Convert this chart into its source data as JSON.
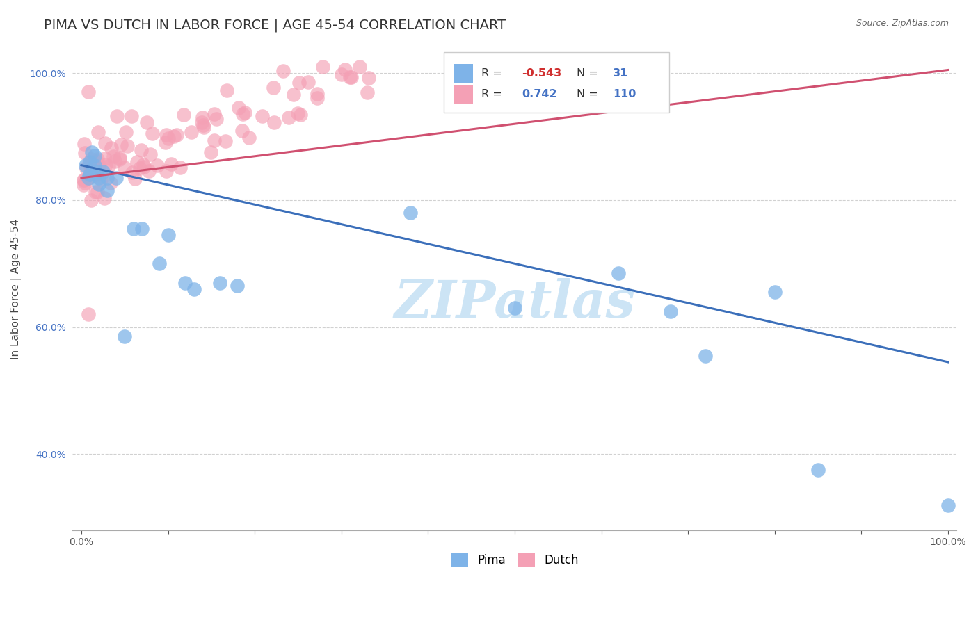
{
  "title": "PIMA VS DUTCH IN LABOR FORCE | AGE 45-54 CORRELATION CHART",
  "source": "Source: ZipAtlas.com",
  "ylabel": "In Labor Force | Age 45-54",
  "pima_color": "#7eb3e8",
  "dutch_color": "#f4a0b5",
  "pima_line_color": "#3b6fba",
  "dutch_line_color": "#d05070",
  "legend_pima_label": "Pima",
  "legend_dutch_label": "Dutch",
  "r_pima": -0.543,
  "n_pima": 31,
  "r_dutch": 0.742,
  "n_dutch": 110,
  "watermark": "ZIPatlas",
  "watermark_color": "#cce4f5",
  "background_color": "#ffffff",
  "grid_color": "#cccccc",
  "title_fontsize": 14,
  "axis_fontsize": 11,
  "tick_fontsize": 10
}
